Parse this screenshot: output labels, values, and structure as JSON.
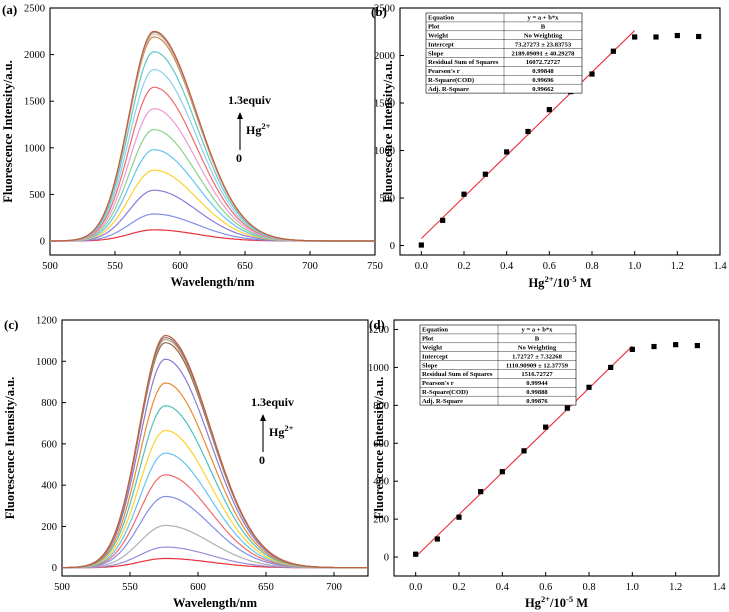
{
  "chart_data": [
    {
      "id": "a",
      "type": "line",
      "panel_label": "(a)",
      "xlabel": "Wavelength/nm",
      "ylabel": "Fluorescence Intensity/a.u.",
      "xlim": [
        500,
        750
      ],
      "ylim": [
        -150,
        2500
      ],
      "xticks": [
        500,
        550,
        600,
        650,
        700,
        750
      ],
      "yticks": [
        0,
        500,
        1000,
        1500,
        2000,
        2500
      ],
      "peak_x": 580,
      "annotation": {
        "top": "1.3equiv",
        "species": "Hg",
        "charge": "2+",
        "bottom": "0"
      },
      "series_peaks": [
        120,
        290,
        545,
        760,
        980,
        1195,
        1420,
        1650,
        1840,
        2030,
        2190,
        2220,
        2240,
        2250
      ],
      "series_colors": [
        "#e8303a",
        "#7f8fe8",
        "#8a7ad6",
        "#ffd030",
        "#62c4f0",
        "#88d28a",
        "#ec9bd2",
        "#ef6a6a",
        "#8dd0ec",
        "#62c8c8",
        "#c08a5a",
        "#e0c0a0",
        "#909090",
        "#c06040"
      ]
    },
    {
      "id": "b",
      "type": "scatter",
      "panel_label": "(b)",
      "xlabel": "Hg2+/10-5 M",
      "xlabel_base": "Hg",
      "xlabel_sup": "2+",
      "xlabel_rest": "/10",
      "xlabel_exp": "-5",
      "xlabel_unit": " M",
      "ylabel": "Fluorescence Intensity/a.u.",
      "xlim": [
        -0.1,
        1.4
      ],
      "ylim": [
        -100,
        2500
      ],
      "xticks": [
        0.0,
        0.2,
        0.4,
        0.6,
        0.8,
        1.0,
        1.2,
        1.4
      ],
      "yticks": [
        0,
        500,
        1000,
        1500,
        2000,
        2500
      ],
      "x": [
        0.0,
        0.1,
        0.2,
        0.3,
        0.4,
        0.5,
        0.6,
        0.7,
        0.8,
        0.9,
        1.0,
        1.1,
        1.2,
        1.3
      ],
      "y": [
        5,
        265,
        540,
        750,
        985,
        1200,
        1430,
        1620,
        1805,
        2045,
        2195,
        2195,
        2210,
        2200
      ],
      "fit": {
        "intercept": 73.27273,
        "slope": 2189.09091,
        "x_range": [
          0.0,
          1.0
        ]
      },
      "table": [
        [
          "Equation",
          "y = a + b*x"
        ],
        [
          "Plot",
          "B"
        ],
        [
          "Weight",
          "No Weighting"
        ],
        [
          "Intercept",
          "73.27273 ± 23.83753"
        ],
        [
          "Slope",
          "2189.09091 ± 40.29278"
        ],
        [
          "Residual Sum of Squares",
          "16072.72727"
        ],
        [
          "Pearson's r",
          "0.99848"
        ],
        [
          "R-Square(COD)",
          "0.99696"
        ],
        [
          "Adj. R-Square",
          "0.99662"
        ]
      ]
    },
    {
      "id": "c",
      "type": "line",
      "panel_label": "(c)",
      "xlabel": "Wavelength/nm",
      "ylabel": "Fluorescence Intensity/a.u.",
      "xlim": [
        500,
        725
      ],
      "ylim": [
        -40,
        1200
      ],
      "xticks": [
        500,
        550,
        600,
        650,
        700
      ],
      "yticks": [
        0,
        200,
        400,
        600,
        800,
        1000,
        1200
      ],
      "peak_x": 576,
      "annotation": {
        "top": "1.3equiv",
        "species": "Hg",
        "charge": "2+",
        "bottom": "0"
      },
      "series_peaks": [
        45,
        100,
        205,
        345,
        450,
        555,
        665,
        785,
        895,
        1010,
        1090,
        1105,
        1115,
        1125
      ],
      "series_colors": [
        "#e8303a",
        "#9a8ad8",
        "#b0b0b0",
        "#7f8fe8",
        "#ef6a6a",
        "#62c4f0",
        "#ffd030",
        "#4fbfbf",
        "#e88a30",
        "#8a7ad6",
        "#8a6a4a",
        "#d0a080",
        "#808080",
        "#c06040"
      ]
    },
    {
      "id": "d",
      "type": "scatter",
      "panel_label": "(d)",
      "xlabel": "Hg2+/10-5 M",
      "xlabel_base": "Hg",
      "xlabel_sup": "2+",
      "xlabel_rest": "/10",
      "xlabel_exp": "-5",
      "xlabel_unit": " M",
      "ylabel": "Fluorescence Intensity/a.u.",
      "xlim": [
        -0.1,
        1.4
      ],
      "ylim": [
        -100,
        1250
      ],
      "xticks": [
        0.0,
        0.2,
        0.4,
        0.6,
        0.8,
        1.0,
        1.2,
        1.4
      ],
      "yticks": [
        0,
        200,
        400,
        600,
        800,
        1000,
        1200
      ],
      "x": [
        0.0,
        0.1,
        0.2,
        0.3,
        0.4,
        0.5,
        0.6,
        0.7,
        0.8,
        0.9,
        1.0,
        1.1,
        1.2,
        1.3
      ],
      "y": [
        15,
        95,
        210,
        345,
        450,
        560,
        685,
        785,
        895,
        1000,
        1095,
        1110,
        1120,
        1115
      ],
      "fit": {
        "intercept": 1.72727,
        "slope": 1110.90909,
        "x_range": [
          0.0,
          1.0
        ]
      },
      "table": [
        [
          "Equation",
          "y = a + b*x"
        ],
        [
          "Plot",
          "B"
        ],
        [
          "Weight",
          "No Weighting"
        ],
        [
          "Intercept",
          "1.72727 ± 7.32268"
        ],
        [
          "Slope",
          "1110.90909 ± 12.37759"
        ],
        [
          "Residual Sum of Squares",
          "1516.72727"
        ],
        [
          "Pearson's r",
          "0.99944"
        ],
        [
          "R-Square(COD)",
          "0.99888"
        ],
        [
          "Adj. R-Square",
          "0.99876"
        ]
      ]
    }
  ]
}
